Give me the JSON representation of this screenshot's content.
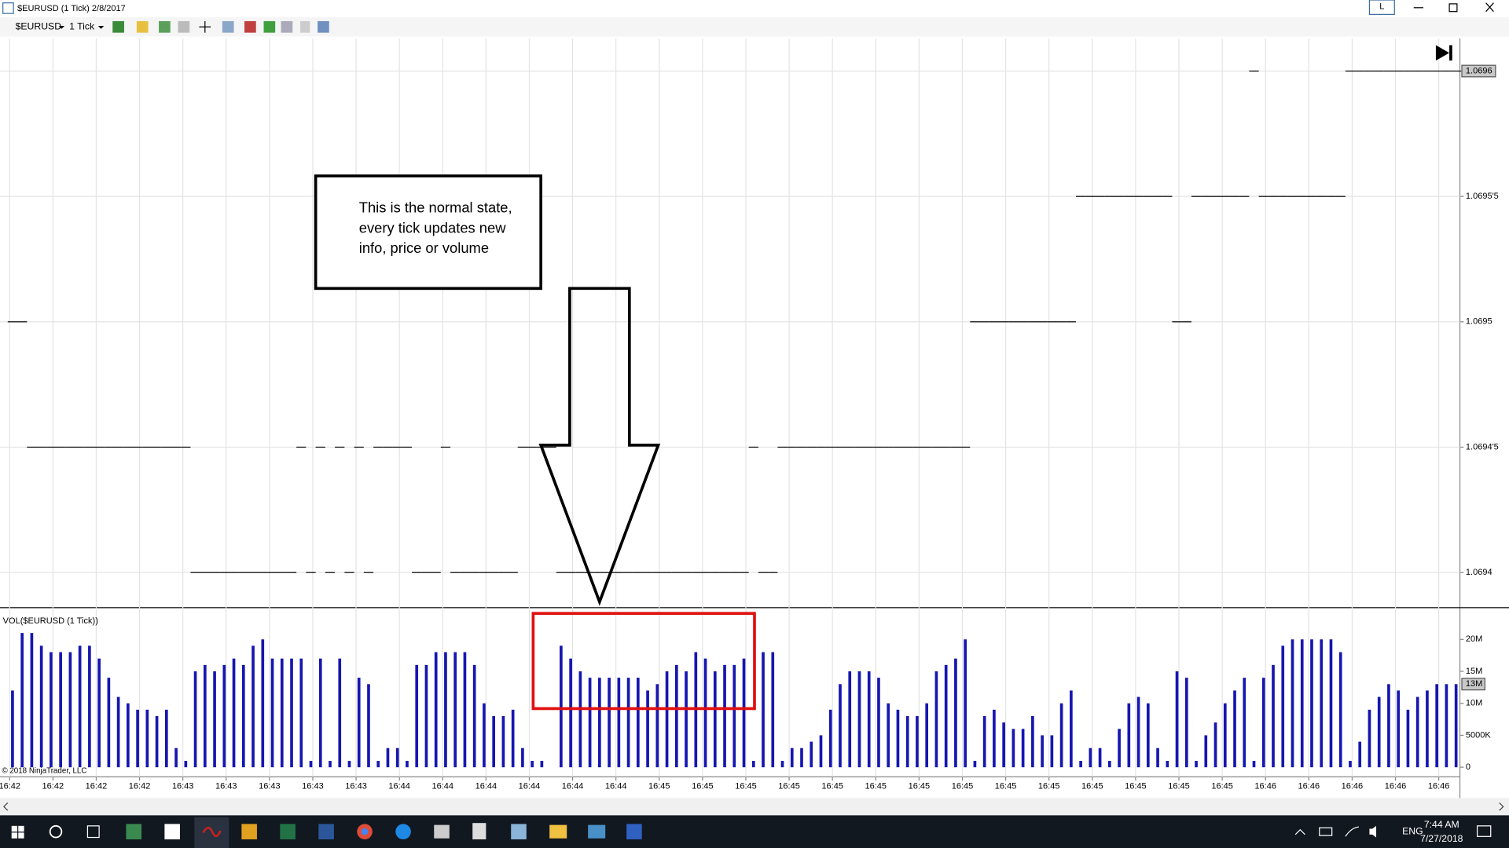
{
  "window": {
    "title": "$EURUSD (1 Tick) 2/8/2017",
    "button": "L"
  },
  "toolbar": {
    "instrument": "$EURUSD",
    "interval": "1 Tick"
  },
  "annotation": {
    "lines": [
      "This is the normal state,",
      "every tick updates new",
      "info, price or volume"
    ]
  },
  "footer": "© 2018 NinjaTrader, LLC",
  "taskbar": {
    "language": "ENG",
    "time": "7:44 AM",
    "date": "7/27/2018"
  },
  "chart_data": [
    {
      "type": "step",
      "color": "#000000",
      "ylim": [
        1.069386,
        1.069613
      ],
      "yticks": [
        1.0694,
        {
          "value": 1.06945,
          "label": "1.0694'5"
        },
        1.0695,
        {
          "value": 1.06955,
          "label": "1.0695'5"
        },
        1.0696
      ],
      "last_price": 1.0696,
      "values": [
        1.0695,
        1.0695,
        1.06945,
        1.06945,
        1.06945,
        1.06945,
        1.06945,
        1.06945,
        1.06945,
        1.06945,
        1.06945,
        1.06945,
        1.06945,
        1.06945,
        1.06945,
        1.06945,
        1.06945,
        1.06945,
        1.06945,
        1.0694,
        1.0694,
        1.0694,
        1.0694,
        1.0694,
        1.0694,
        1.0694,
        1.0694,
        1.0694,
        1.0694,
        1.0694,
        1.06945,
        1.0694,
        1.06945,
        1.0694,
        1.06945,
        1.0694,
        1.06945,
        1.0694,
        1.06945,
        1.06945,
        1.06945,
        1.06945,
        1.0694,
        1.0694,
        1.0694,
        1.06945,
        1.0694,
        1.0694,
        1.0694,
        1.0694,
        1.0694,
        1.0694,
        1.0694,
        1.06945,
        1.06945,
        1.06945,
        1.06945,
        1.0694,
        1.0694,
        1.0694,
        1.0694,
        1.0694,
        1.0694,
        1.0694,
        1.0694,
        1.0694,
        1.0694,
        1.0694,
        1.0694,
        1.0694,
        1.0694,
        1.0694,
        1.0694,
        1.0694,
        1.0694,
        1.0694,
        1.0694,
        1.06945,
        1.0694,
        1.0694,
        1.06945,
        1.06945,
        1.06945,
        1.06945,
        1.06945,
        1.06945,
        1.06945,
        1.06945,
        1.06945,
        1.06945,
        1.06945,
        1.06945,
        1.06945,
        1.06945,
        1.06945,
        1.06945,
        1.06945,
        1.06945,
        1.06945,
        1.06945,
        1.0695,
        1.0695,
        1.0695,
        1.0695,
        1.0695,
        1.0695,
        1.0695,
        1.0695,
        1.0695,
        1.0695,
        1.0695,
        1.06955,
        1.06955,
        1.06955,
        1.06955,
        1.06955,
        1.06955,
        1.06955,
        1.06955,
        1.06955,
        1.06955,
        1.0695,
        1.0695,
        1.06955,
        1.06955,
        1.06955,
        1.06955,
        1.06955,
        1.06955,
        1.0696,
        1.06955,
        1.06955,
        1.06955,
        1.06955,
        1.06955,
        1.06955,
        1.06955,
        1.06955,
        1.06955,
        1.0696,
        1.0696,
        1.0696,
        1.0696,
        1.0696,
        1.0696,
        1.0696,
        1.0696,
        1.0696,
        1.0696,
        1.0696,
        1.0696
      ]
    },
    {
      "type": "bar",
      "title": "VOL($EURUSD (1 Tick))",
      "color": "#1616b0",
      "ylim": [
        -1.5,
        24.66
      ],
      "yticks": [
        0,
        {
          "value": 5,
          "label": "5000K"
        },
        {
          "value": 10,
          "label": "10M"
        },
        {
          "value": 15,
          "label": "15M"
        },
        {
          "value": 20,
          "label": "20M"
        }
      ],
      "last_value": {
        "value": 13,
        "label": "13M"
      },
      "xtick_labels": [
        "16:42",
        "16:42",
        "16:42",
        "16:42",
        "16:43",
        "16:43",
        "16:43",
        "16:43",
        "16:43",
        "16:44",
        "16:44",
        "16:44",
        "16:44",
        "16:44",
        "16:44",
        "16:45",
        "16:45",
        "16:45",
        "16:45",
        "16:45",
        "16:45",
        "16:45",
        "16:45",
        "16:45",
        "16:45",
        "16:45",
        "16:45",
        "16:45",
        "16:45",
        "16:46",
        "16:46",
        "16:46",
        "16:46",
        "16:46"
      ],
      "values": [
        12,
        21,
        21,
        19,
        18,
        18,
        18,
        19,
        19,
        17,
        14,
        11,
        10,
        9,
        9,
        8,
        9,
        3,
        1,
        15,
        16,
        15,
        16,
        17,
        16,
        19,
        20,
        17,
        17,
        17,
        17,
        1,
        17,
        1,
        17,
        1,
        14,
        13,
        1,
        3,
        3,
        1,
        16,
        16,
        18,
        18,
        18,
        18,
        16,
        10,
        8,
        8,
        9,
        3,
        1,
        1,
        0,
        19,
        17,
        15,
        14,
        14,
        14,
        14,
        14,
        14,
        12,
        13,
        15,
        16,
        15,
        18,
        17,
        15,
        16,
        16,
        17,
        1,
        18,
        18,
        1,
        3,
        3,
        4,
        5,
        9,
        13,
        15,
        15,
        15,
        14,
        10,
        9,
        8,
        8,
        10,
        15,
        16,
        17,
        20,
        1,
        8,
        9,
        7,
        6,
        6,
        8,
        5,
        5,
        10,
        12,
        1,
        3,
        3,
        1,
        6,
        10,
        11,
        10,
        3,
        1,
        15,
        14,
        1,
        5,
        7,
        10,
        12,
        14,
        1,
        14,
        16,
        19,
        20,
        20,
        20,
        20,
        20,
        18,
        1,
        4,
        9,
        11,
        13,
        12,
        9,
        11,
        12,
        13,
        13,
        13
      ]
    }
  ]
}
